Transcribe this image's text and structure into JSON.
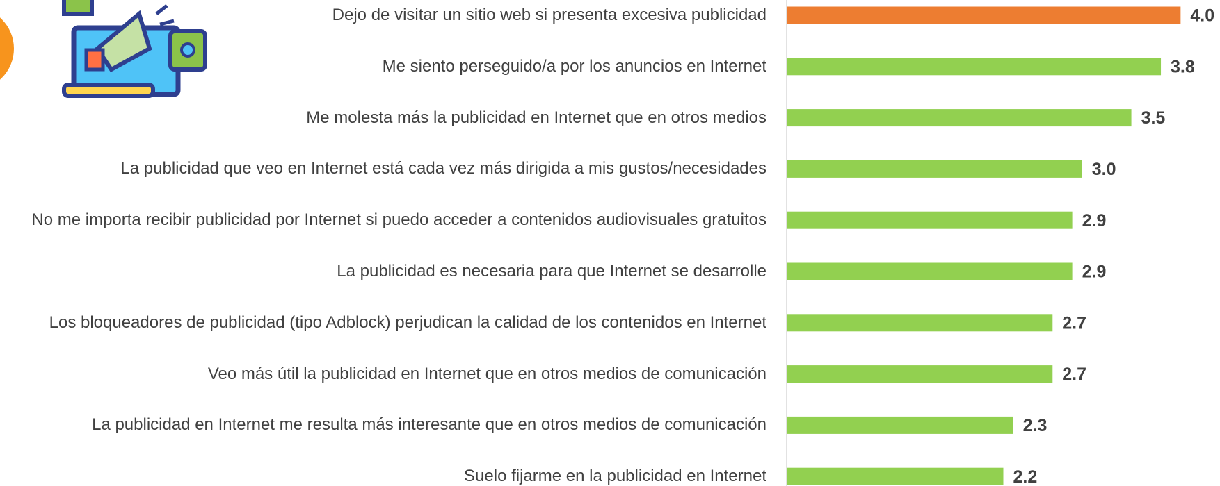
{
  "chart_data": {
    "type": "bar",
    "orientation": "horizontal",
    "categories": [
      "Dejo de visitar un sitio web si presenta excesiva publicidad",
      "Me siento perseguido/a por los anuncios en Internet",
      "Me molesta más la publicidad en Internet que en otros medios",
      "La publicidad que veo en Internet está cada vez más dirigida a mis gustos/necesidades",
      "No me importa recibir publicidad por Internet si puedo acceder a contenidos audiovisuales gratuitos",
      "La publicidad es necesaria para que Internet se desarrolle",
      "Los bloqueadores de publicidad (tipo Adblock) perjudican la calidad de los contenidos en Internet",
      "Veo más útil la publicidad en Internet que en otros medios de comunicación",
      "La publicidad en Internet me resulta más interesante que en otros medios de comunicación",
      "Suelo fijarme en la publicidad en Internet"
    ],
    "values": [
      4.0,
      3.8,
      3.5,
      3.0,
      2.9,
      2.9,
      2.7,
      2.7,
      2.3,
      2.2
    ],
    "value_labels": [
      "4.0",
      "3.8",
      "3.5",
      "3.0",
      "2.9",
      "2.9",
      "2.7",
      "2.7",
      "2.3",
      "2.2"
    ],
    "colors": [
      "#ed7d31",
      "#92d050",
      "#92d050",
      "#92d050",
      "#92d050",
      "#92d050",
      "#92d050",
      "#92d050",
      "#92d050",
      "#92d050"
    ],
    "xlim": [
      0,
      4.4
    ]
  }
}
